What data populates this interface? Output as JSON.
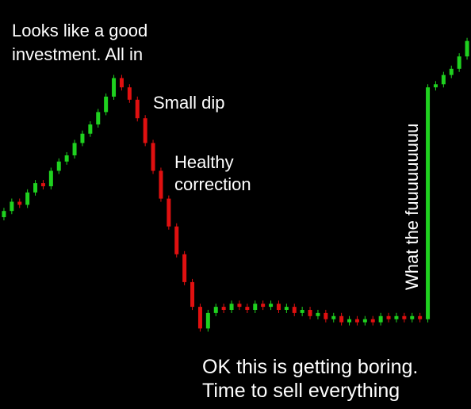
{
  "chart_data": {
    "type": "candlestick",
    "up_color": "#1fd11f",
    "down_color": "#e01010",
    "ylim": [
      0,
      100
    ],
    "open": [
      40,
      42,
      45,
      44,
      48,
      51,
      50,
      55,
      58,
      60,
      64,
      67,
      70,
      74,
      79,
      85,
      82,
      78,
      72,
      64,
      55,
      46,
      37,
      28,
      19,
      11,
      4,
      9,
      11,
      10,
      12,
      11,
      10,
      12,
      11,
      12,
      10,
      11,
      9,
      10,
      8,
      9,
      7,
      8,
      6,
      7,
      6,
      7,
      6,
      8,
      7,
      8,
      7,
      8,
      7,
      82,
      83,
      86,
      88,
      92
    ],
    "close": [
      42,
      45,
      44,
      48,
      51,
      50,
      55,
      58,
      60,
      64,
      67,
      70,
      74,
      79,
      85,
      82,
      78,
      72,
      64,
      55,
      46,
      37,
      28,
      19,
      11,
      4,
      9,
      11,
      10,
      12,
      11,
      10,
      12,
      11,
      12,
      10,
      11,
      9,
      10,
      8,
      9,
      7,
      8,
      6,
      7,
      6,
      7,
      6,
      8,
      7,
      8,
      7,
      8,
      7,
      82,
      83,
      86,
      88,
      92,
      97
    ],
    "annotations": [
      {
        "lines": [
          "Looks like a good",
          "investment. All in"
        ]
      },
      {
        "lines": [
          "Small dip"
        ]
      },
      {
        "lines": [
          "Healthy",
          "correction"
        ]
      },
      {
        "lines": [
          "OK this is getting boring.",
          "Time to sell everything"
        ]
      },
      {
        "lines": [
          "What the fuuuuuuuuu"
        ]
      }
    ]
  }
}
